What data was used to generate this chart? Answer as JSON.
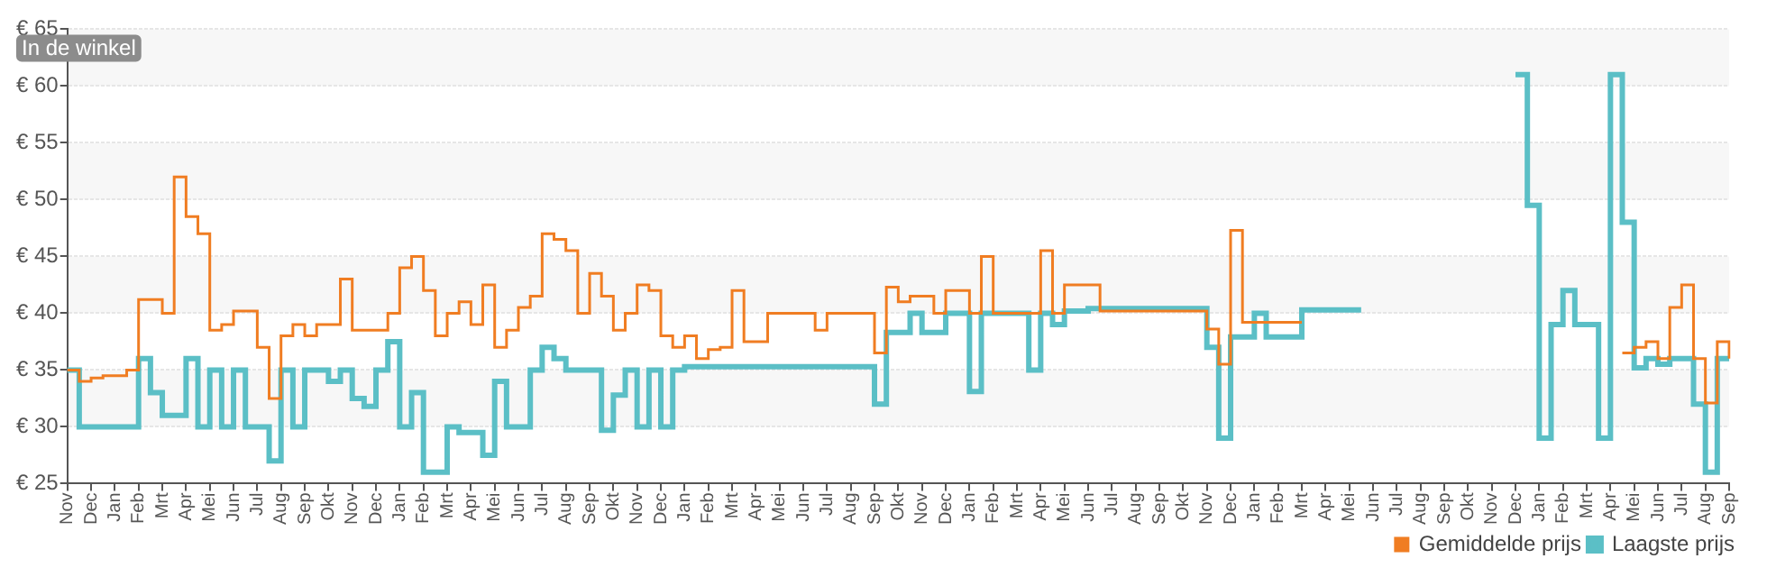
{
  "chart_data": {
    "type": "step",
    "annotations": [
      "In de winkel"
    ],
    "categories": [
      "Nov",
      null,
      "Dec",
      null,
      "Jan",
      null,
      "Feb",
      null,
      "Mrt",
      null,
      "Apr",
      null,
      "Mei",
      null,
      "Jun",
      null,
      "Jul",
      null,
      "Aug",
      null,
      "Sep",
      null,
      "Okt",
      null,
      "Nov",
      null,
      "Dec",
      null,
      "Jan",
      null,
      "Feb",
      null,
      "Mrt",
      null,
      "Apr",
      null,
      "Mei",
      null,
      "Jun",
      null,
      "Jul",
      null,
      "Aug",
      null,
      "Sep",
      null,
      "Okt",
      null,
      "Nov",
      null,
      "Dec",
      null,
      "Jan",
      null,
      "Feb",
      null,
      "Mrt",
      null,
      "Apr",
      null,
      "Mei",
      null,
      "Jun",
      null,
      "Jul",
      null,
      "Aug",
      null,
      "Sep",
      null,
      "Okt",
      null,
      "Nov",
      null,
      "Dec",
      null,
      "Jan",
      null,
      "Feb",
      null,
      "Mrt",
      null,
      "Apr",
      null,
      "Mei",
      null,
      "Jun",
      null,
      "Jul",
      null,
      "Aug",
      null,
      "Sep",
      null,
      "Okt",
      null,
      "Nov",
      null,
      "Dec",
      null,
      "Jan",
      null,
      "Feb",
      null,
      "Mrt",
      null,
      "Apr",
      null,
      "Mei",
      null,
      "Jun",
      null,
      "Jul",
      null,
      "Aug",
      null,
      "Sep",
      null,
      "Okt",
      null,
      "Nov",
      null,
      "Dec",
      null,
      "Jan",
      null,
      "Feb",
      null,
      "Mrt",
      null,
      "Apr",
      null,
      "Mei",
      null,
      "Jun",
      null,
      "Jul",
      null,
      "Aug",
      null,
      "Sep"
    ],
    "ylim": [
      25,
      65
    ],
    "yticks": [
      {
        "value": 25,
        "label": "€ 25"
      },
      {
        "value": 30,
        "label": "€ 30"
      },
      {
        "value": 35,
        "label": "€ 35"
      },
      {
        "value": 40,
        "label": "€ 40"
      },
      {
        "value": 45,
        "label": "€ 45"
      },
      {
        "value": 50,
        "label": "€ 50"
      },
      {
        "value": 55,
        "label": "€ 55"
      },
      {
        "value": 60,
        "label": "€ 60"
      },
      {
        "value": 65,
        "label": "€ 65"
      }
    ],
    "grid": "y",
    "legend": "bottom right",
    "series": [
      {
        "name": "Gemiddelde prijs",
        "color": "#f07d22",
        "values": [
          35,
          34,
          34.3,
          34.5,
          34.5,
          35,
          41.2,
          41.2,
          40,
          52,
          48.5,
          47,
          38.5,
          39,
          40.2,
          40.2,
          37,
          32.5,
          38,
          39,
          38,
          39,
          39,
          43,
          38.5,
          38.5,
          38.5,
          40,
          44,
          45,
          42,
          38,
          40,
          41,
          39,
          42.5,
          37,
          38.5,
          40.5,
          41.5,
          47,
          46.5,
          45.5,
          40,
          43.5,
          41.5,
          38.5,
          40,
          42.5,
          42,
          38,
          37,
          38,
          36,
          36.8,
          37,
          42,
          37.5,
          37.5,
          40,
          40,
          40,
          40,
          38.5,
          40,
          40,
          40,
          40,
          36.5,
          42.3,
          41,
          41.5,
          41.5,
          40,
          42,
          42,
          40,
          45,
          40,
          40,
          40,
          40,
          45.5,
          40,
          42.5,
          42.5,
          42.5,
          40.2,
          40.2,
          40.2,
          40.2,
          40.2,
          40.2,
          40.2,
          40.2,
          40.2,
          38.6,
          35.5,
          47.3,
          39.2,
          39.2,
          39.2,
          39.2,
          39.2,
          39.2,
          null,
          null,
          null,
          null,
          null,
          null,
          null,
          null,
          null,
          null,
          null,
          null,
          null,
          null,
          null,
          null,
          null,
          null,
          null,
          null,
          null,
          null,
          null,
          null,
          null,
          null,
          36.5,
          37,
          37.5,
          36,
          40.5,
          42.5,
          36,
          32.1,
          37.5,
          36
        ]
      },
      {
        "name": "Laagste prijs",
        "color": "#5bbfc6",
        "values": [
          35,
          30,
          30,
          30,
          30,
          30,
          36,
          33,
          31,
          31,
          36,
          30,
          35,
          30,
          35,
          30,
          30,
          27,
          35,
          30,
          35,
          35,
          34,
          35,
          32.5,
          31.8,
          35,
          37.5,
          30,
          33,
          26,
          26,
          30,
          29.5,
          29.5,
          27.5,
          34,
          30,
          30,
          35,
          37,
          36,
          35,
          35,
          35,
          29.7,
          32.8,
          35,
          30,
          35,
          30,
          35,
          35.3,
          35.3,
          35.3,
          35.3,
          35.3,
          35.3,
          35.3,
          35.3,
          35.3,
          35.3,
          35.3,
          35.3,
          35.3,
          35.3,
          35.3,
          35.3,
          32,
          38.3,
          38.3,
          40,
          38.3,
          38.3,
          40,
          40,
          33.1,
          40,
          40,
          40,
          40,
          35,
          40,
          39,
          40.2,
          40.2,
          40.4,
          40.4,
          40.4,
          40.4,
          40.4,
          40.4,
          40.4,
          40.4,
          40.4,
          40.4,
          37,
          29,
          37.9,
          37.9,
          40,
          37.9,
          37.9,
          37.9,
          40.3,
          40.3,
          40.3,
          40.3,
          40.3,
          40.3,
          null,
          null,
          null,
          null,
          null,
          null,
          null,
          null,
          null,
          null,
          null,
          null,
          61,
          49.5,
          29,
          39,
          42,
          39,
          39,
          29,
          61,
          48,
          35.2,
          36,
          35.5,
          36,
          36,
          32,
          26,
          36,
          36
        ]
      }
    ]
  }
}
